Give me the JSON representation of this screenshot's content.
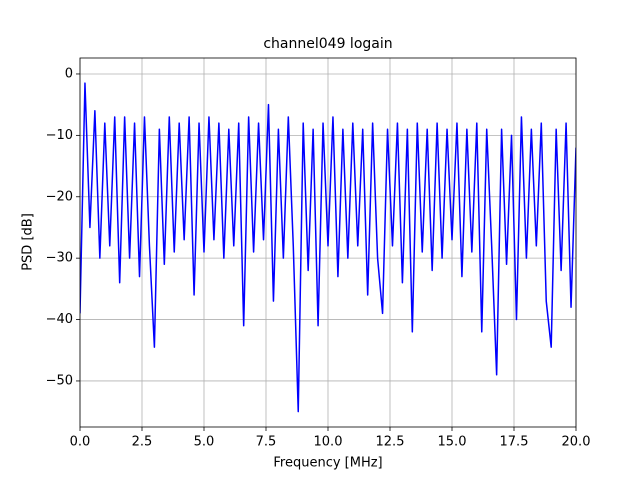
{
  "chart_data": {
    "type": "line",
    "title": "channel049 logain",
    "x_label": "Frequency [MHz]",
    "y_label": "PSD [dB]",
    "xlim": [
      0,
      20
    ],
    "ylim": [
      -57.5,
      2.6
    ],
    "xticks": [
      {
        "value": 0,
        "label": "0.0"
      },
      2.5,
      {
        "value": 5,
        "label": "5.0"
      },
      7.5,
      {
        "value": 10,
        "label": "10.0"
      },
      12.5,
      {
        "value": 15,
        "label": "15.0"
      },
      17.5,
      {
        "value": 20,
        "label": "20.0"
      }
    ],
    "yticks": [
      {
        "value": -50,
        "label": "−50"
      },
      {
        "value": -40,
        "label": "−40"
      },
      {
        "value": -30,
        "label": "−30"
      },
      {
        "value": -20,
        "label": "−20"
      },
      {
        "value": -10,
        "label": "−10"
      },
      0
    ],
    "grid": true,
    "x": [
      0,
      0.2,
      0.4,
      0.6,
      0.8,
      1,
      1.2,
      1.4,
      1.6,
      1.8,
      2,
      2.2,
      2.4,
      2.6,
      2.8,
      3,
      3.2,
      3.4,
      3.6,
      3.8,
      4,
      4.2,
      4.4,
      4.6,
      4.8,
      5,
      5.2,
      5.4,
      5.6,
      5.8,
      6,
      6.2,
      6.4,
      6.6,
      6.8,
      7,
      7.2,
      7.4,
      7.6,
      7.8,
      8,
      8.2,
      8.4,
      8.6,
      8.8,
      9,
      9.2,
      9.4,
      9.6,
      9.8,
      10,
      10.2,
      10.4,
      10.6,
      10.8,
      11,
      11.2,
      11.4,
      11.6,
      11.8,
      12,
      12.2,
      12.4,
      12.6,
      12.8,
      13,
      13.2,
      13.4,
      13.6,
      13.8,
      14,
      14.2,
      14.4,
      14.6,
      14.8,
      15,
      15.2,
      15.4,
      15.6,
      15.8,
      16,
      16.2,
      16.4,
      16.6,
      16.8,
      17,
      17.2,
      17.4,
      17.6,
      17.8,
      18,
      18.2,
      18.4,
      18.6,
      18.8,
      19,
      19.2,
      19.4,
      19.6,
      19.8,
      20
    ],
    "series": [
      {
        "name": "PSD",
        "color": "#0000ff",
        "values": [
          -39,
          -1.5,
          -25,
          -6,
          -30,
          -8,
          -28,
          -7,
          -34,
          -7,
          -30,
          -8,
          -33,
          -7,
          -28,
          -44.5,
          -9,
          -31,
          -7,
          -29,
          -8,
          -27,
          -7,
          -36,
          -8,
          -29,
          -7,
          -27,
          -8,
          -30,
          -9,
          -28,
          -8,
          -41,
          -7,
          -29,
          -8,
          -27,
          -5,
          -37,
          -9,
          -30,
          -7,
          -28,
          -55,
          -8,
          -32,
          -9,
          -41,
          -8,
          -28,
          -7,
          -33,
          -9,
          -30,
          -8,
          -28,
          -9,
          -36,
          -8,
          -30,
          -39,
          -9,
          -28,
          -8,
          -34,
          -9,
          -42,
          -8,
          -29,
          -9,
          -32,
          -8,
          -30,
          -9,
          -27,
          -8,
          -33,
          -9,
          -29,
          -8,
          -42,
          -9,
          -28,
          -49,
          -9,
          -31,
          -10,
          -40,
          -7,
          -30,
          -9,
          -28,
          -8,
          -37,
          -44.5,
          -9,
          -32,
          -8,
          -38,
          -12
        ]
      }
    ]
  }
}
